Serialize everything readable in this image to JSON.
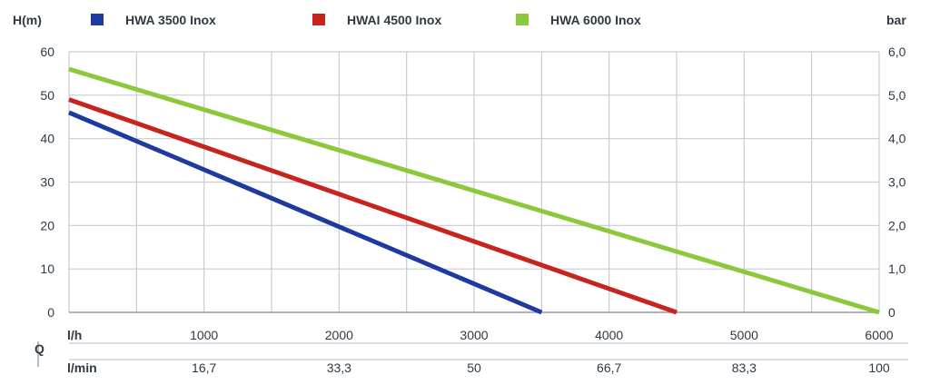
{
  "chart_data": {
    "type": "line",
    "y_left_label": "H(m)",
    "y_right_label": "bar",
    "x_unit_label": "l/h",
    "q_label": "Q",
    "x2_unit_label": "l/min",
    "xlim": [
      0,
      6000
    ],
    "ylim": [
      0,
      60
    ],
    "y_right_lim": [
      0,
      6
    ],
    "x_grid": [
      0,
      500,
      1000,
      1500,
      2000,
      2500,
      3000,
      3500,
      4000,
      4500,
      5000,
      5500,
      6000
    ],
    "x_ticks": [
      1000,
      2000,
      3000,
      4000,
      5000,
      6000
    ],
    "x_tick_labels": [
      "1000",
      "2000",
      "3000",
      "4000",
      "5000",
      "6000"
    ],
    "x2_tick_labels": [
      "16,7",
      "33,3",
      "50",
      "66,7",
      "83,3",
      "100"
    ],
    "y_ticks": [
      0,
      10,
      20,
      30,
      40,
      50,
      60
    ],
    "y_tick_labels": [
      "0",
      "10",
      "20",
      "30",
      "40",
      "50",
      "60"
    ],
    "y_right_tick_labels": [
      "0",
      "1,0",
      "2,0",
      "3,0",
      "4,0",
      "5,0",
      "6,0"
    ],
    "grid": true,
    "legend_position": "top",
    "series": [
      {
        "name": "HWA 3500 Inox",
        "color": "#1f3a9e",
        "x": [
          0,
          3500
        ],
        "y": [
          46,
          0
        ]
      },
      {
        "name": "HWAI 4500 Inox",
        "color": "#c8241e",
        "x": [
          0,
          4500
        ],
        "y": [
          49,
          0
        ]
      },
      {
        "name": "HWA 6000 Inox",
        "color": "#8cc83c",
        "x": [
          0,
          6000
        ],
        "y": [
          56,
          0
        ]
      }
    ]
  }
}
